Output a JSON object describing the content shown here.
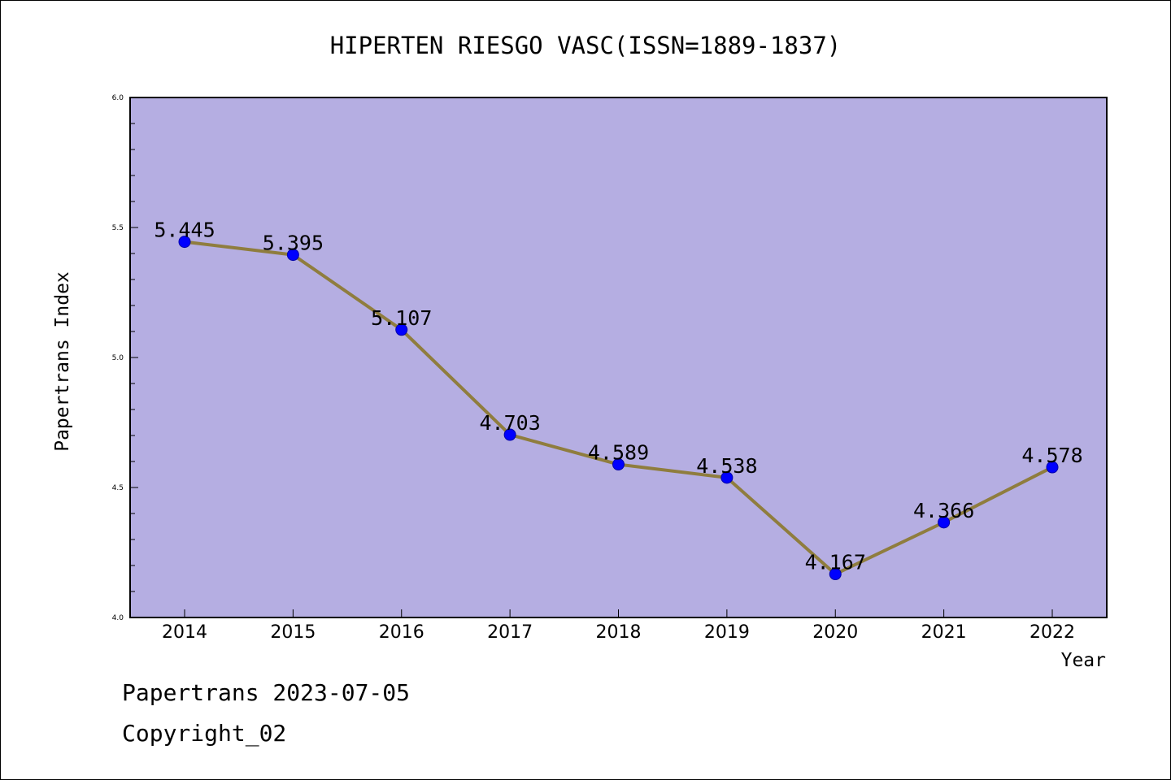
{
  "chart_data": {
    "type": "line",
    "title": "HIPERTEN RIESGO VASC(ISSN=1889-1837)",
    "xlabel": "Year",
    "ylabel": "Papertrans Index",
    "categories": [
      "2014",
      "2015",
      "2016",
      "2017",
      "2018",
      "2019",
      "2020",
      "2021",
      "2022"
    ],
    "series": [
      {
        "values": [
          5.445,
          5.395,
          5.107,
          4.703,
          4.589,
          4.538,
          4.167,
          4.366,
          4.578
        ],
        "labels": [
          "5.445",
          "5.395",
          "5.107",
          "4.703",
          "4.589",
          "4.538",
          "4.167",
          "4.366",
          "4.578"
        ]
      }
    ],
    "ylim": [
      4.0,
      6.0
    ],
    "yticks": [
      "4.0",
      "4.5",
      "5.0",
      "5.5",
      "6.0"
    ],
    "grid": false,
    "colors": {
      "plot_background": "#b5aee2",
      "line": "#8f7d3e",
      "marker": "#0000ff"
    }
  },
  "footer": {
    "line1": "Papertrans 2023-07-05",
    "line2": "Copyright_02"
  }
}
